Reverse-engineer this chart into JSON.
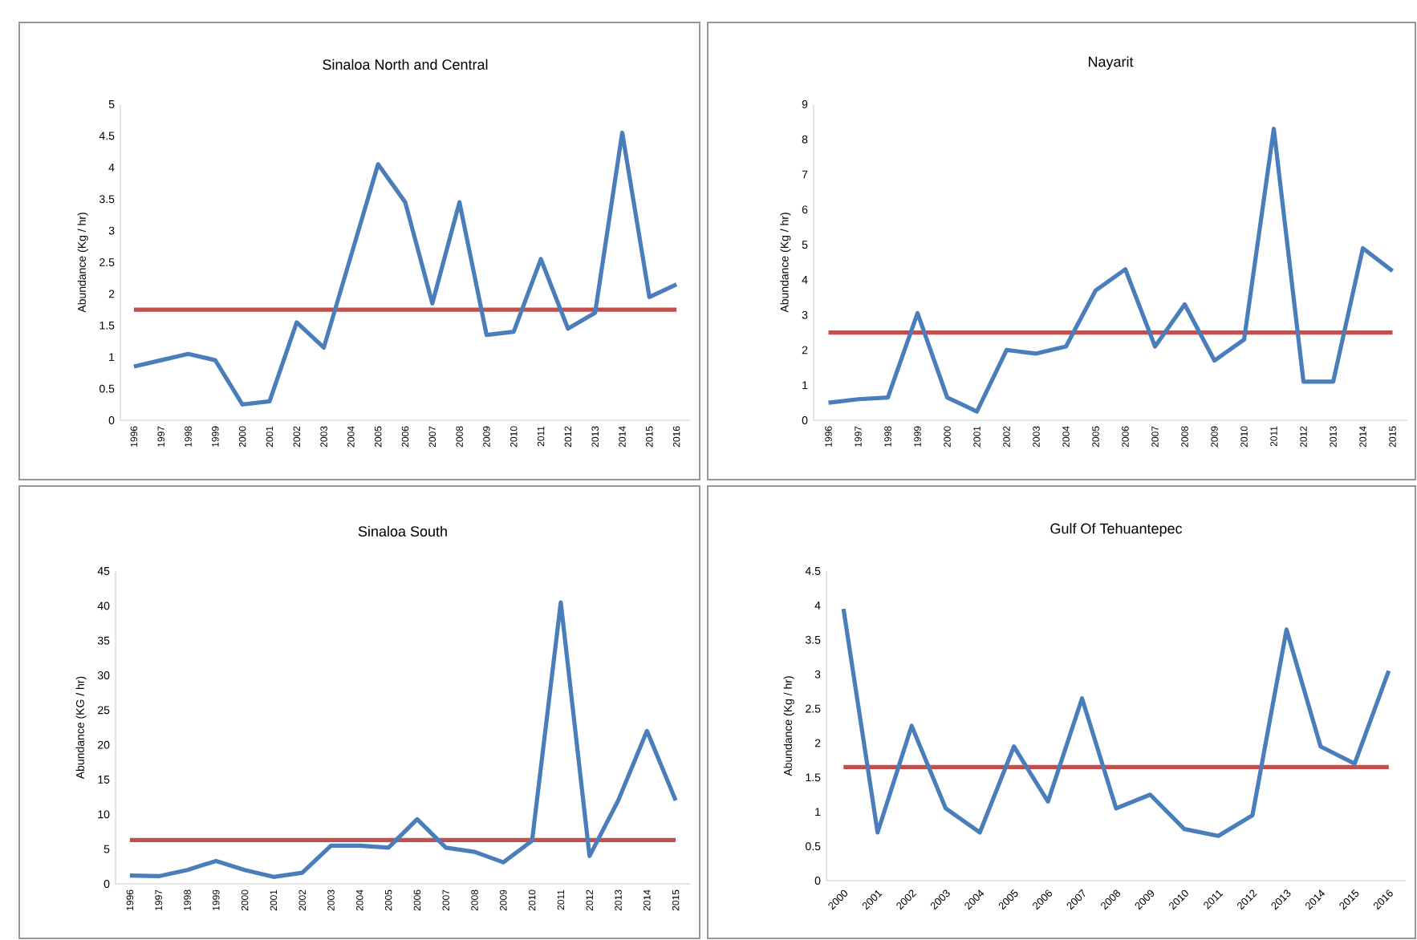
{
  "chart_data": [
    {
      "type": "line",
      "title": "Sinaloa North and Central",
      "ylabel": "Abundance (Kg / hr)",
      "categories": [
        "1996",
        "1997",
        "1998",
        "1999",
        "2000",
        "2001",
        "2002",
        "2003",
        "2004",
        "2005",
        "2006",
        "2007",
        "2008",
        "2009",
        "2010",
        "2011",
        "2012",
        "2013",
        "2014",
        "2015",
        "2016"
      ],
      "series": [
        {
          "color": "#4a7ebb",
          "values": [
            0.85,
            0.95,
            1.05,
            0.95,
            0.25,
            0.3,
            1.55,
            1.15,
            2.6,
            4.05,
            3.45,
            1.85,
            3.45,
            1.35,
            1.4,
            2.55,
            1.45,
            1.7,
            4.55,
            1.95,
            2.15
          ]
        }
      ],
      "ylim": [
        0,
        5
      ],
      "yticks": [
        0,
        0.5,
        1,
        1.5,
        2,
        2.5,
        3,
        3.5,
        4,
        4.5,
        5
      ],
      "ref_lines": [
        {
          "axis": "y",
          "value": 1.75,
          "color": "#c0504d"
        }
      ]
    },
    {
      "type": "line",
      "title": "Nayarit",
      "ylabel": "Abundance (Kg / hr)",
      "categories": [
        "1996",
        "1997",
        "1998",
        "1999",
        "2000",
        "2001",
        "2002",
        "2003",
        "2004",
        "2005",
        "2006",
        "2007",
        "2008",
        "2009",
        "2010",
        "2011",
        "2012",
        "2013",
        "2014",
        "2015"
      ],
      "series": [
        {
          "color": "#4a7ebb",
          "values": [
            0.5,
            0.6,
            0.65,
            3.05,
            0.65,
            0.25,
            2.0,
            1.9,
            2.1,
            3.7,
            4.3,
            2.1,
            3.3,
            1.7,
            2.3,
            8.3,
            1.1,
            1.1,
            4.9,
            4.25
          ]
        }
      ],
      "ylim": [
        0,
        9
      ],
      "yticks": [
        0,
        1,
        2,
        3,
        4,
        5,
        6,
        7,
        8,
        9
      ],
      "ref_lines": [
        {
          "axis": "y",
          "value": 2.5,
          "color": "#c0504d"
        }
      ]
    },
    {
      "type": "line",
      "title": "Sinaloa South",
      "ylabel": "Abundance (KG / hr)",
      "categories": [
        "1996",
        "1997",
        "1998",
        "1999",
        "2000",
        "2001",
        "2002",
        "2003",
        "2004",
        "2005",
        "2006",
        "2007",
        "2008",
        "2009",
        "2010",
        "2011",
        "2012",
        "2013",
        "2014",
        "2015"
      ],
      "series": [
        {
          "color": "#4a7ebb",
          "values": [
            1.2,
            1.1,
            2.0,
            3.3,
            2.0,
            1.0,
            1.6,
            5.5,
            5.5,
            5.2,
            9.3,
            5.2,
            4.6,
            3.1,
            6.2,
            40.5,
            4.0,
            12.0,
            22.0,
            12.0
          ]
        }
      ],
      "ylim": [
        0,
        45
      ],
      "yticks": [
        0,
        5,
        10,
        15,
        20,
        25,
        30,
        35,
        40,
        45
      ],
      "ref_lines": [
        {
          "axis": "y",
          "value": 6.3,
          "color": "#c0504d"
        }
      ]
    },
    {
      "type": "line",
      "title": "Gulf Of Tehuantepec",
      "ylabel": "Abundance (Kg / hr)",
      "categories": [
        "2000",
        "2001",
        "2002",
        "2003",
        "2004",
        "2005",
        "2006",
        "2007",
        "2008",
        "2009",
        "2010",
        "2011",
        "2012",
        "2013",
        "2014",
        "2015",
        "2016"
      ],
      "series": [
        {
          "color": "#4a7ebb",
          "values": [
            3.95,
            0.7,
            2.25,
            1.05,
            0.7,
            1.95,
            1.15,
            2.65,
            1.05,
            1.25,
            0.75,
            0.65,
            0.95,
            3.65,
            1.95,
            1.7,
            3.05
          ]
        }
      ],
      "ylim": [
        0,
        4.5
      ],
      "yticks": [
        0,
        0.5,
        1,
        1.5,
        2,
        2.5,
        3,
        3.5,
        4,
        4.5
      ],
      "ref_lines": [
        {
          "axis": "y",
          "value": 1.65,
          "color": "#c0504d"
        }
      ]
    }
  ]
}
